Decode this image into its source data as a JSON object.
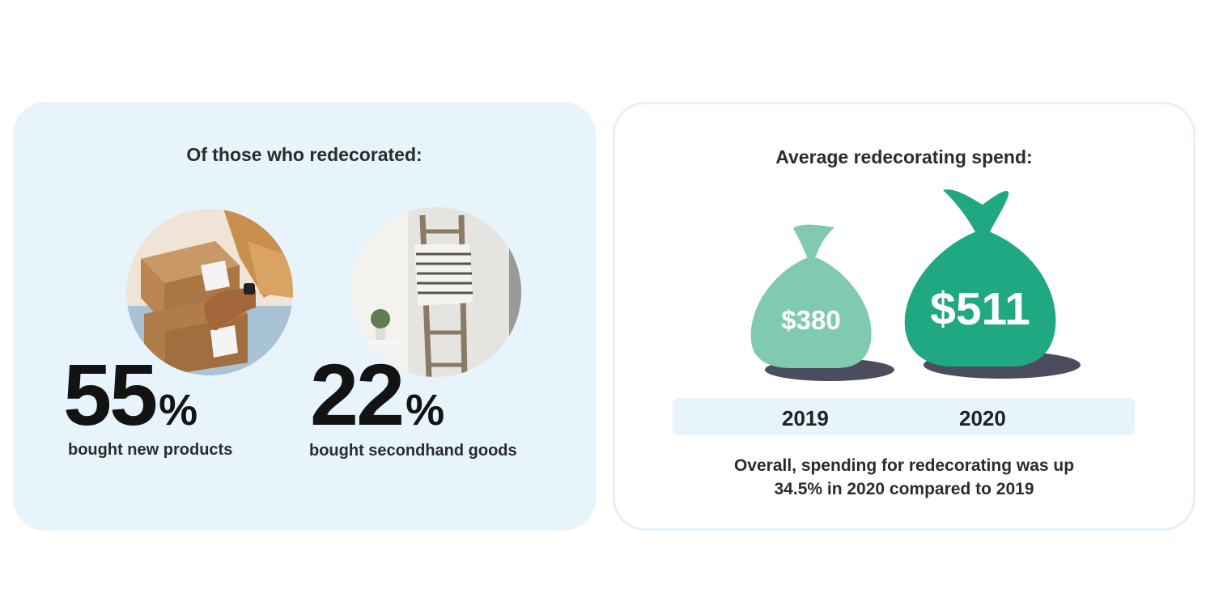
{
  "left": {
    "title": "Of those who redecorated:",
    "stats": [
      {
        "value": "55",
        "unit": "%",
        "label": "bought new products",
        "photo": "package-boxes-photo"
      },
      {
        "value": "22",
        "unit": "%",
        "label": "bought secondhand goods",
        "photo": "blanket-ladder-photo"
      }
    ]
  },
  "right": {
    "title": "Average redecorating spend:",
    "bags": [
      {
        "amount": "$380",
        "year": "2019",
        "color": "#80cbb0"
      },
      {
        "amount": "$511",
        "year": "2020",
        "color": "#1fa881"
      }
    ],
    "shadow_color": "#4b4d5e",
    "summary_line1": "Overall, spending for redecorating was up",
    "summary_line2": "34.5% in 2020 compared to 2019"
  }
}
